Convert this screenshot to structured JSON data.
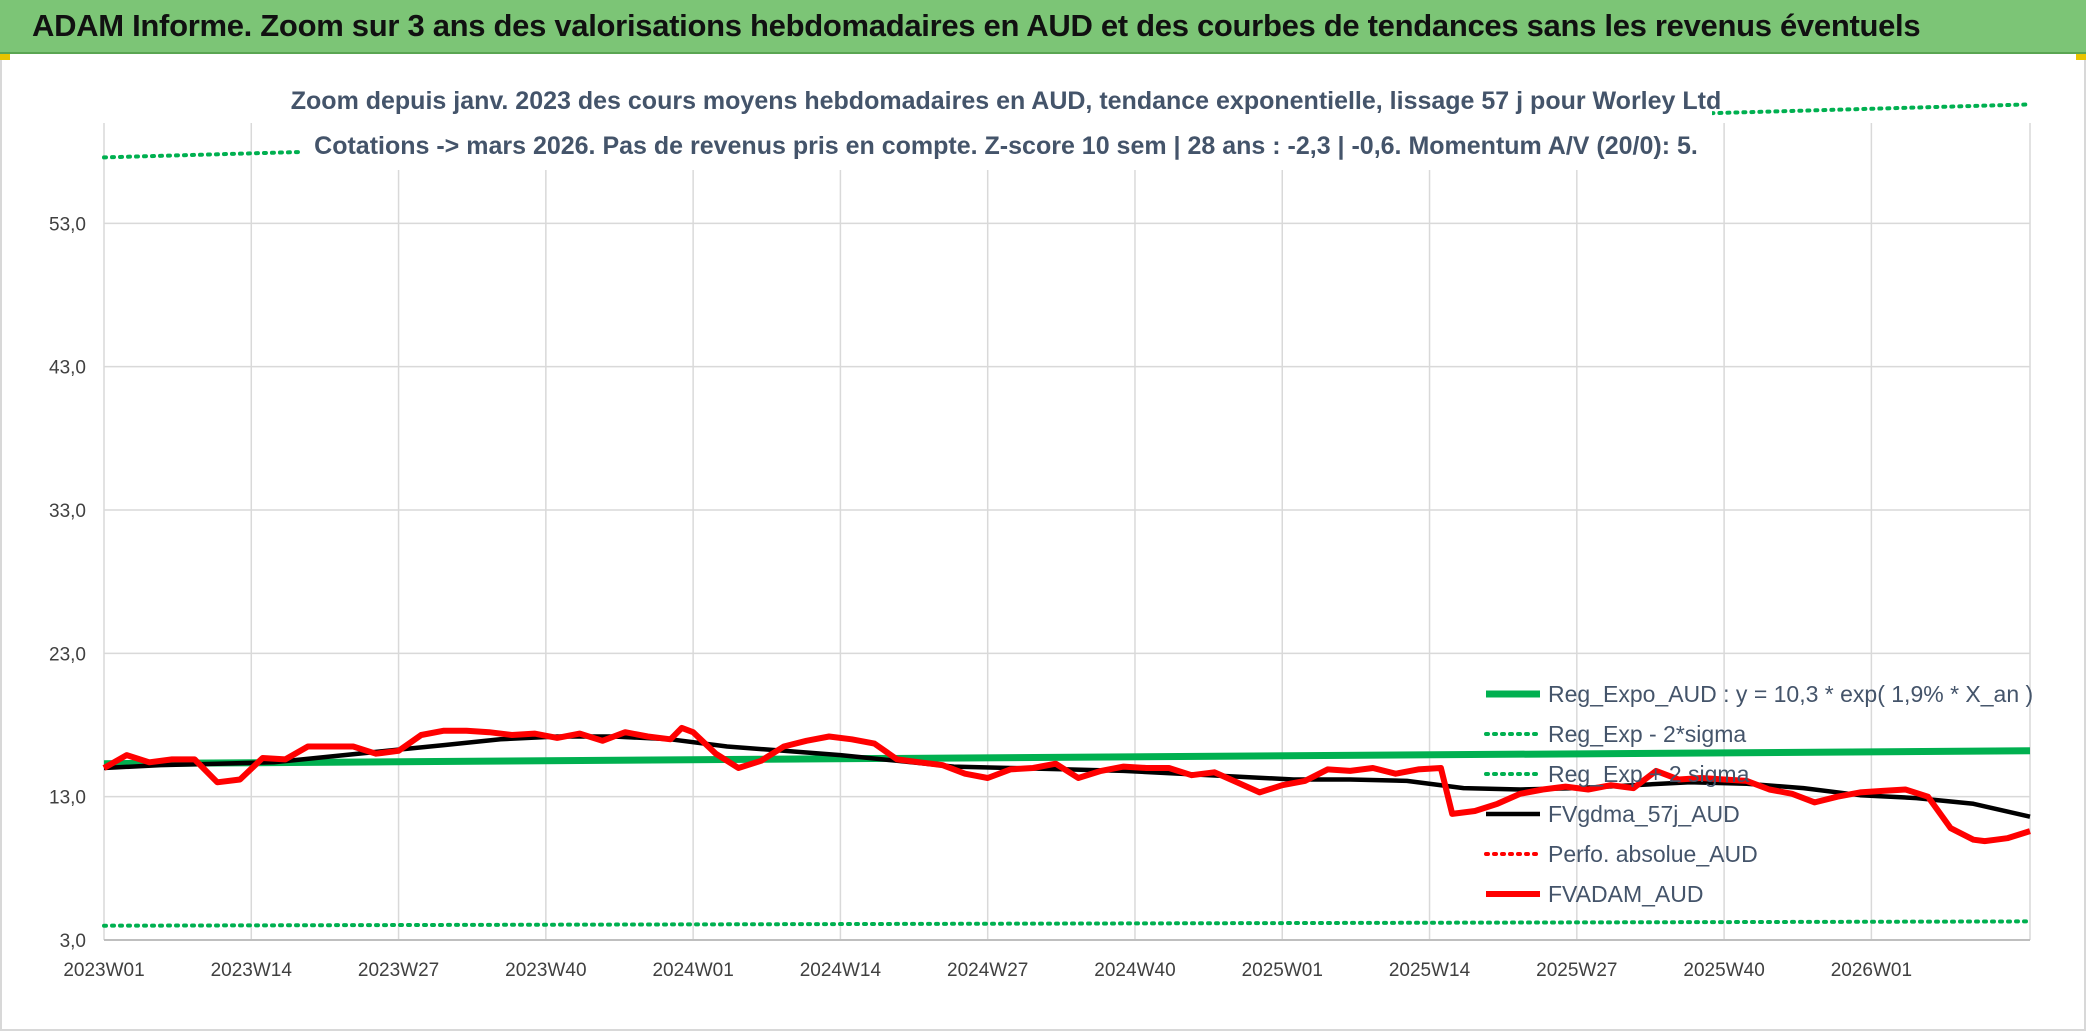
{
  "banner": {
    "title": "ADAM Informe. Zoom sur 3 ans des valorisations hebdomadaires en AUD et des courbes de tendances sans les revenus éventuels"
  },
  "chart_data": {
    "type": "line",
    "title_line1": "Zoom depuis janv. 2023 des cours moyens hebdomadaires en AUD, tendance exponentielle, lissage 57 j pour Worley Ltd",
    "title_line2": "Cotations -> mars 2026. Pas de revenus pris en compte. Z-score 10 sem | 28 ans : -2,3 | -0,6. Momentum A/V (20/0): 5.",
    "xlabel": "",
    "ylabel": "",
    "ylim": [
      3,
      60
    ],
    "yticks": [
      "3,0",
      "13,0",
      "23,0",
      "33,0",
      "43,0",
      "53,0"
    ],
    "ytick_values": [
      3,
      13,
      23,
      33,
      43,
      53
    ],
    "xticks": [
      "2023W01",
      "2023W14",
      "2023W27",
      "2023W40",
      "2024W01",
      "2024W14",
      "2024W27",
      "2024W40",
      "2025W01",
      "2025W14",
      "2025W27",
      "2025W40",
      "2026W01"
    ],
    "xtick_weeks": [
      0,
      13,
      26,
      39,
      52,
      65,
      78,
      91,
      104,
      117,
      130,
      143,
      156
    ],
    "x_week_max": 170,
    "grid": true,
    "legend_position": "right",
    "colors": {
      "reg_expo": "#00b050",
      "sigma_minus": "#00b050",
      "sigma_plus": "#00b050",
      "fvgdma": "#000000",
      "perfo": "#ff0000",
      "fvadam": "#ff0000",
      "grid": "#d9d9d9",
      "banner": "#7cc576"
    },
    "series": [
      {
        "name": "Reg_Expo_AUD : y = 10,3 * exp( 1,9% *  X_an )",
        "key": "reg_expo",
        "style": "solid-thick",
        "x": [
          0,
          170
        ],
        "values": [
          15.3,
          16.2
        ]
      },
      {
        "name": "Reg_Exp - 2*sigma",
        "key": "sigma_minus",
        "style": "dotted",
        "x": [
          0,
          170
        ],
        "values": [
          4.0,
          4.3
        ]
      },
      {
        "name": "Reg_Exp + 2 sigma",
        "key": "sigma_plus",
        "style": "dotted",
        "x": [
          0,
          170
        ],
        "values": [
          57.6,
          61.3
        ]
      },
      {
        "name": "FVgdma_57j_AUD",
        "key": "fvgdma",
        "style": "solid",
        "x": [
          0,
          5,
          10,
          15,
          20,
          25,
          30,
          35,
          40,
          45,
          50,
          55,
          60,
          65,
          70,
          75,
          80,
          85,
          90,
          95,
          100,
          105,
          110,
          115,
          120,
          125,
          130,
          135,
          140,
          145,
          150,
          155,
          160,
          165,
          170
        ],
        "values": [
          15.0,
          15.2,
          15.3,
          15.4,
          15.8,
          16.2,
          16.6,
          17.0,
          17.2,
          17.2,
          17.0,
          16.5,
          16.2,
          15.9,
          15.5,
          15.1,
          15.0,
          14.9,
          14.8,
          14.6,
          14.4,
          14.2,
          14.2,
          14.1,
          13.6,
          13.5,
          13.6,
          13.8,
          14.0,
          13.9,
          13.6,
          13.1,
          12.9,
          12.5,
          11.6
        ]
      },
      {
        "name": "Perfo. absolue_AUD",
        "key": "perfo",
        "style": "dotted",
        "x": [],
        "values": []
      },
      {
        "name": "FVADAM_AUD",
        "key": "fvadam",
        "style": "solid-thick",
        "x": [
          0,
          2,
          4,
          6,
          8,
          10,
          12,
          14,
          16,
          18,
          20,
          22,
          24,
          26,
          28,
          30,
          32,
          34,
          36,
          38,
          40,
          42,
          44,
          46,
          48,
          50,
          51,
          52,
          54,
          56,
          58,
          60,
          62,
          64,
          66,
          68,
          70,
          72,
          74,
          76,
          78,
          80,
          82,
          84,
          86,
          88,
          90,
          92,
          94,
          96,
          98,
          100,
          102,
          104,
          106,
          108,
          110,
          112,
          114,
          116,
          118,
          119,
          121,
          123,
          125,
          127,
          129,
          131,
          133,
          135,
          137,
          139,
          141,
          143,
          145,
          147,
          149,
          151,
          153,
          155,
          157,
          159,
          161,
          163,
          165,
          166,
          167,
          168,
          170
        ],
        "values": [
          15.0,
          15.9,
          15.4,
          15.6,
          15.6,
          14.0,
          14.2,
          15.7,
          15.6,
          16.5,
          16.5,
          16.5,
          16.0,
          16.2,
          17.3,
          17.6,
          17.6,
          17.5,
          17.3,
          17.4,
          17.1,
          17.4,
          16.9,
          17.5,
          17.2,
          17.0,
          17.8,
          17.5,
          16.0,
          15.0,
          15.5,
          16.5,
          16.9,
          17.2,
          17.0,
          16.7,
          15.6,
          15.4,
          15.2,
          14.6,
          14.3,
          14.9,
          15.0,
          15.3,
          14.3,
          14.8,
          15.1,
          15.0,
          15.0,
          14.5,
          14.7,
          14.0,
          13.3,
          13.8,
          14.1,
          14.9,
          14.8,
          15.0,
          14.6,
          14.9,
          15.0,
          11.8,
          12.0,
          12.5,
          13.2,
          13.5,
          13.7,
          13.5,
          13.8,
          13.6,
          14.8,
          14.2,
          14.3,
          14.2,
          14.1,
          13.5,
          13.2,
          12.6,
          13.0,
          13.3,
          13.4,
          13.5,
          13.0,
          10.8,
          10.0,
          9.9,
          10.0,
          10.1,
          10.6
        ]
      }
    ]
  }
}
